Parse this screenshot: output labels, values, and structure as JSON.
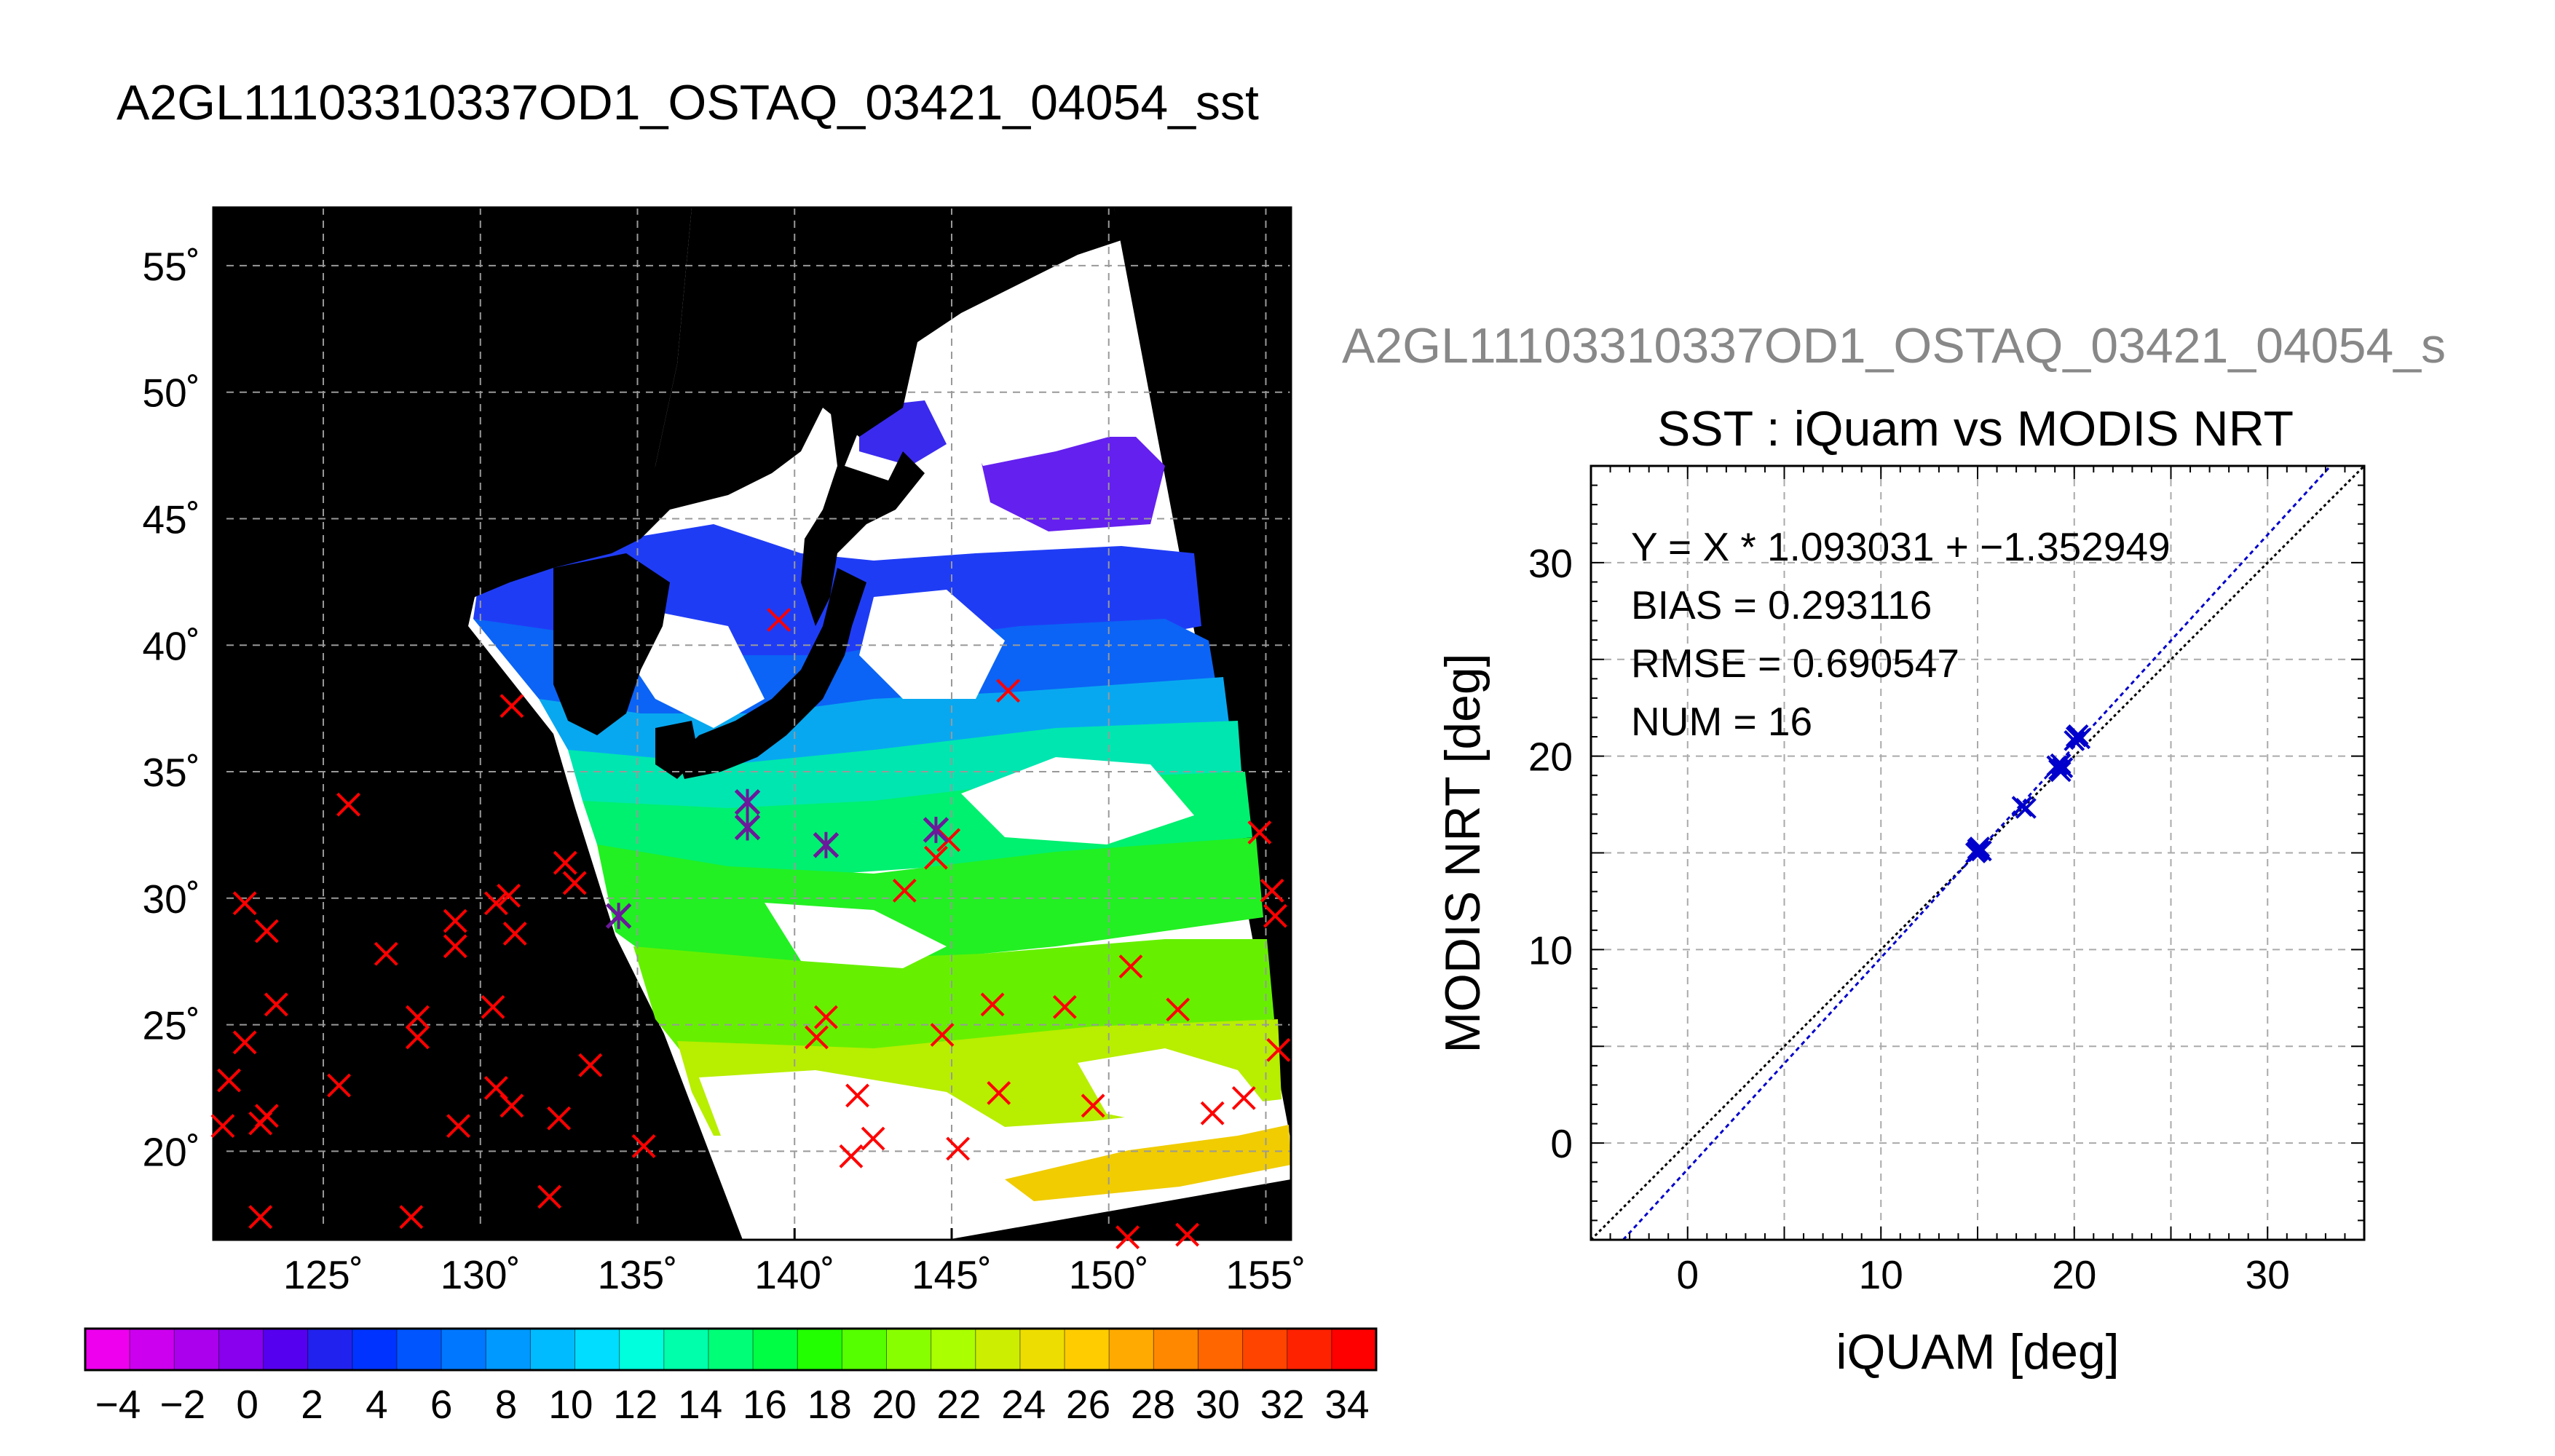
{
  "page": {
    "title": "A2GL11103310337OD1_OSTAQ_03421_04054_sst"
  },
  "colorbar": {
    "tick_labels": [
      "−4",
      "−2",
      "0",
      "2",
      "4",
      "6",
      "8",
      "10",
      "12",
      "14",
      "16",
      "18",
      "20",
      "22",
      "24",
      "26",
      "28",
      "30",
      "32",
      "34"
    ],
    "colors": [
      "#ee00ee",
      "#cc00ee",
      "#aa00ee",
      "#8800ee",
      "#5500ee",
      "#2222ee",
      "#0033ff",
      "#0055ff",
      "#0077ff",
      "#0099ff",
      "#00bbff",
      "#00ddff",
      "#00ffdd",
      "#00ffaa",
      "#00ff77",
      "#00ff44",
      "#22ff00",
      "#55ff00",
      "#88ff00",
      "#aaff00",
      "#ccee00",
      "#eedd00",
      "#ffcc00",
      "#ffaa00",
      "#ff8800",
      "#ff6600",
      "#ff4400",
      "#ff2200",
      "#ff0000"
    ]
  },
  "chart_data": [
    {
      "type": "map",
      "title": "",
      "x_tick_labels": [
        "125˚",
        "130˚",
        "135˚",
        "140˚",
        "145˚",
        "150˚",
        "155˚"
      ],
      "y_tick_labels": [
        "20˚",
        "25˚",
        "30˚",
        "35˚",
        "40˚",
        "45˚",
        "50˚",
        "55˚"
      ],
      "lon_range": [
        121.5,
        155.8
      ],
      "lat_range": [
        16.5,
        57.3
      ],
      "grid": true,
      "colors": {
        "land": "#000000",
        "cloud": "#ffffff",
        "no_data": "#000000",
        "marker_outside": "#ff0000",
        "marker_match": "#6a1a9a"
      },
      "matchups_marked": [
        [
          138.5,
          33.8
        ],
        [
          138.5,
          32.8
        ],
        [
          141.0,
          32.1
        ],
        [
          144.5,
          32.7
        ],
        [
          134.4,
          29.3
        ]
      ],
      "iquam_points_red": [
        [
          125.8,
          33.7
        ],
        [
          131.0,
          37.6
        ],
        [
          122.5,
          29.8
        ],
        [
          123.2,
          28.7
        ],
        [
          123.5,
          25.8
        ],
        [
          122.5,
          24.3
        ],
        [
          122.0,
          22.8
        ],
        [
          121.8,
          21.0
        ],
        [
          123.0,
          21.1
        ],
        [
          123.2,
          21.4
        ],
        [
          123.0,
          17.4
        ],
        [
          125.5,
          22.6
        ],
        [
          127.0,
          27.8
        ],
        [
          128.0,
          25.3
        ],
        [
          128.0,
          24.5
        ],
        [
          127.8,
          17.4
        ],
        [
          129.2,
          29.1
        ],
        [
          129.2,
          28.1
        ],
        [
          129.3,
          21.0
        ],
        [
          130.4,
          25.7
        ],
        [
          130.5,
          29.8
        ],
        [
          130.9,
          30.1
        ],
        [
          131.1,
          28.6
        ],
        [
          130.5,
          22.5
        ],
        [
          131.0,
          21.8
        ],
        [
          132.7,
          31.4
        ],
        [
          133.0,
          30.6
        ],
        [
          132.5,
          21.3
        ],
        [
          133.5,
          23.4
        ],
        [
          132.2,
          18.2
        ],
        [
          135.2,
          20.2
        ],
        [
          139.5,
          41.0
        ],
        [
          144.9,
          32.3
        ],
        [
          144.5,
          31.6
        ],
        [
          143.5,
          30.3
        ],
        [
          146.8,
          38.2
        ],
        [
          140.7,
          24.5
        ],
        [
          141.0,
          25.3
        ],
        [
          142.0,
          22.2
        ],
        [
          141.8,
          19.8
        ],
        [
          142.5,
          20.5
        ],
        [
          144.7,
          24.6
        ],
        [
          145.2,
          20.1
        ],
        [
          146.3,
          25.8
        ],
        [
          146.5,
          22.3
        ],
        [
          148.6,
          25.7
        ],
        [
          149.5,
          21.8
        ],
        [
          150.7,
          27.3
        ],
        [
          152.2,
          25.6
        ],
        [
          153.3,
          21.5
        ],
        [
          154.3,
          22.1
        ],
        [
          154.8,
          32.6
        ],
        [
          155.2,
          30.3
        ],
        [
          155.3,
          29.3
        ],
        [
          155.4,
          24.0
        ],
        [
          150.6,
          16.6
        ],
        [
          152.5,
          16.7
        ]
      ]
    },
    {
      "type": "scatter",
      "title": "SST : iQuam vs MODIS NRT",
      "subtitle": "A2GL11103310337OD1_OSTAQ_03421_04054_s",
      "xlabel": "iQUAM [deg]",
      "ylabel": "MODIS NRT [deg]",
      "xlim": [
        -5,
        35
      ],
      "ylim": [
        -5,
        35
      ],
      "x_ticks": [
        0,
        10,
        20,
        30
      ],
      "y_ticks": [
        0,
        10,
        20,
        30
      ],
      "grid": true,
      "points": [
        [
          15.0,
          15.1
        ],
        [
          15.1,
          15.3
        ],
        [
          14.9,
          15.0
        ],
        [
          17.3,
          17.4
        ],
        [
          19.2,
          19.3
        ],
        [
          19.3,
          19.6
        ],
        [
          19.4,
          19.4
        ],
        [
          20.1,
          21.0
        ],
        [
          20.3,
          20.9
        ],
        [
          15.2,
          15.1
        ],
        [
          19.1,
          19.5
        ],
        [
          20.2,
          21.1
        ],
        [
          17.5,
          17.3
        ],
        [
          15.0,
          15.2
        ],
        [
          19.3,
          19.2
        ],
        [
          20.0,
          20.8
        ]
      ],
      "fit": {
        "slope": 1.093031,
        "intercept": -1.352949
      },
      "annotations": [
        "Y = X * 1.093031 + −1.352949",
        "BIAS = 0.293116",
        "RMSE = 0.690547",
        "NUM = 16"
      ],
      "series_colors": {
        "points": "#0000cc",
        "fit_line": "#0000cc",
        "one_to_one": "#000000"
      }
    }
  ]
}
